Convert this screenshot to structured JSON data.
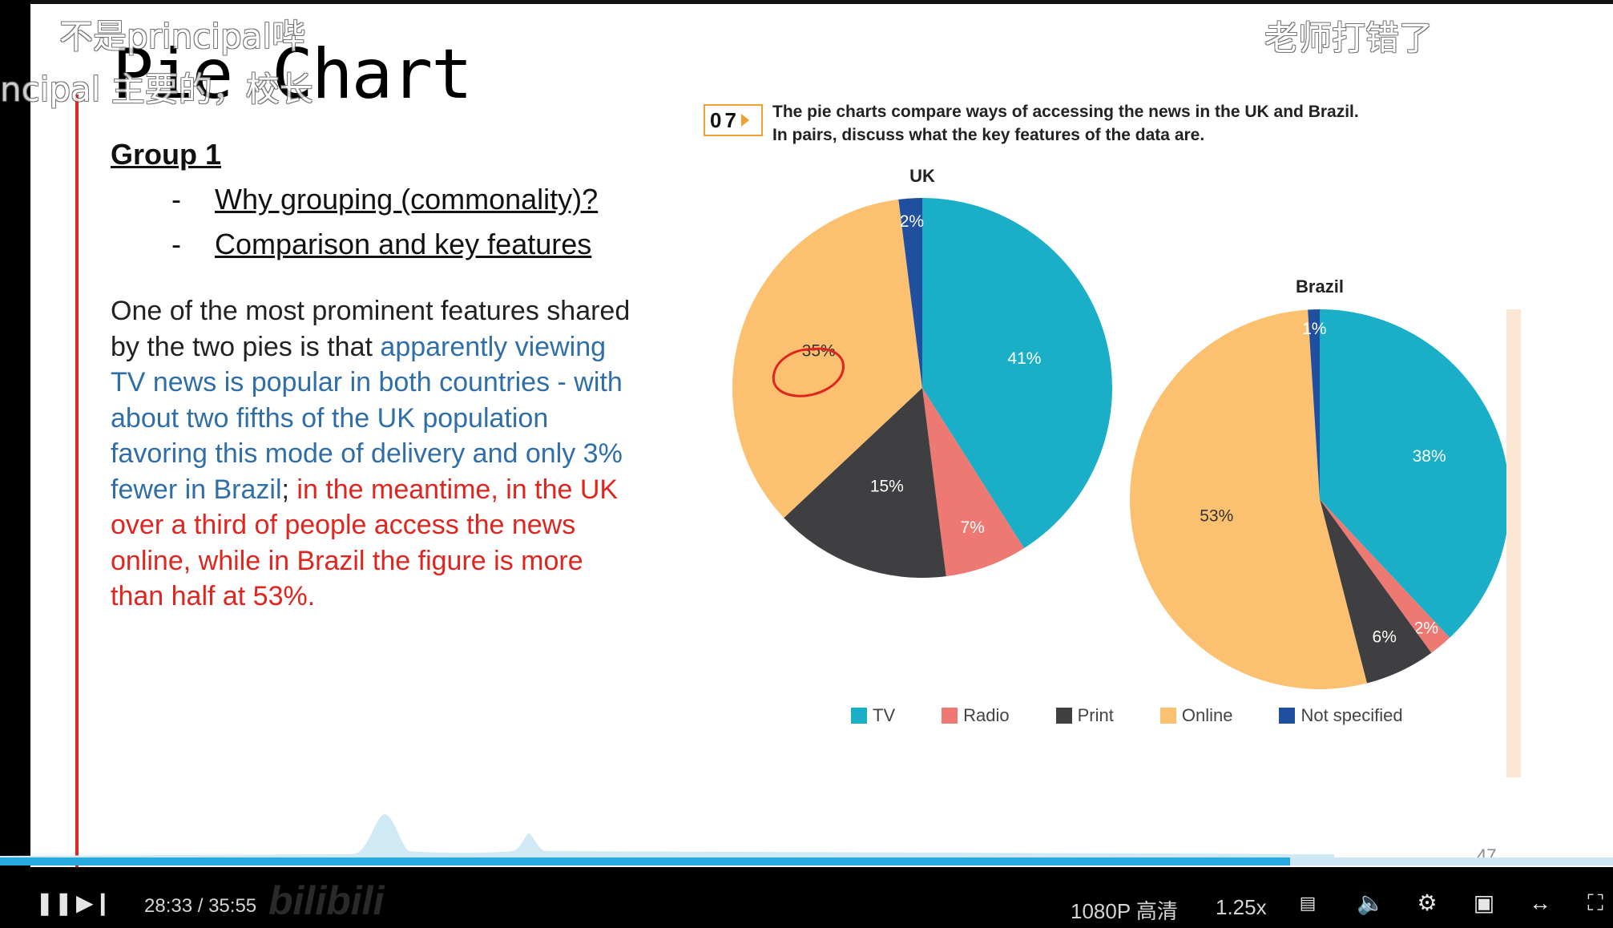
{
  "slide": {
    "title": "Pie Chart",
    "group_heading": "Group 1",
    "bullets": [
      {
        "dash": "-",
        "text": "Why grouping (commonality)?"
      },
      {
        "dash": "-",
        "text": "Comparison and key features"
      }
    ],
    "paragraph": {
      "black": "One of the most prominent features shared by the two pies is that ",
      "blue": "apparently viewing TV news is popular in both countries - with about two fifths of the UK population favoring this mode of delivery and only 3% fewer in Brazil",
      "sep": "; ",
      "red": "in the meantime, in the UK over a third of people access the news online, while in Brazil the figure is more than half at 53%."
    },
    "page_number": "47"
  },
  "exercise": {
    "badge": "07",
    "instruction_line1": "The pie charts compare ways of accessing the news in the UK and Brazil.",
    "instruction_line2": "In pairs, discuss what the key features of the data are."
  },
  "chart_data": [
    {
      "type": "pie",
      "title": "UK",
      "categories": [
        "TV",
        "Radio",
        "Print",
        "Online",
        "Not specified"
      ],
      "values": [
        41,
        7,
        15,
        35,
        2
      ],
      "labels": [
        "41%",
        "7%",
        "15%",
        "35%",
        "2%"
      ]
    },
    {
      "type": "pie",
      "title": "Brazil",
      "categories": [
        "TV",
        "Radio",
        "Print",
        "Online",
        "Not specified"
      ],
      "values": [
        38,
        2,
        6,
        53,
        1
      ],
      "labels": [
        "38%",
        "2%",
        "6%",
        "53%",
        "1%"
      ]
    }
  ],
  "legend": [
    {
      "name": "TV",
      "color": "#1aafc7"
    },
    {
      "name": "Radio",
      "color": "#ee7872"
    },
    {
      "name": "Print",
      "color": "#3f3f42"
    },
    {
      "name": "Online",
      "color": "#fbc170"
    },
    {
      "name": "Not specified",
      "color": "#1f4f9e"
    }
  ],
  "danmaku": [
    "不是principal哔",
    "ncipal 主要的，校长",
    "老师打错了"
  ],
  "player": {
    "time_current": "28:33",
    "time_sep": "/",
    "time_total": "35:55",
    "quality": "1080P 高清",
    "speed": "1.25x",
    "watermark": "bilibili",
    "progress_fraction": 0.8
  }
}
